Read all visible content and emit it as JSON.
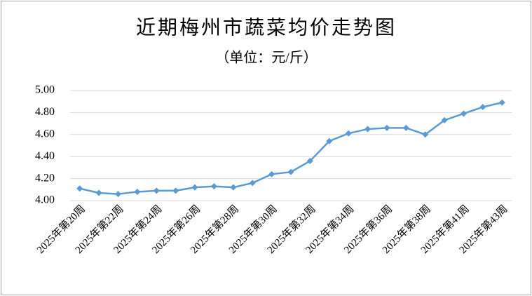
{
  "chart_data": {
    "type": "line",
    "title": "近期梅州市蔬菜均价走势图",
    "subtitle": "（单位：元/斤）",
    "categories": [
      "2025年第20周",
      null,
      "2025年第22周",
      null,
      "2025年第24周",
      null,
      "2025年第26周",
      null,
      "2025年第28周",
      null,
      "2025年第30周",
      null,
      "2025年第32周",
      null,
      "2025年第34周",
      null,
      "2025年第36周",
      null,
      "2025年第38周",
      null,
      "2025年第41周",
      null,
      "2025年第43周"
    ],
    "series": [
      {
        "name": "蔬菜均价",
        "color": "#5b9bd5",
        "values": [
          4.11,
          4.07,
          4.06,
          4.08,
          4.09,
          4.09,
          4.12,
          4.13,
          4.12,
          4.16,
          4.24,
          4.26,
          4.36,
          4.54,
          4.61,
          4.65,
          4.66,
          4.66,
          4.6,
          4.73,
          4.79,
          4.85,
          4.89
        ]
      }
    ],
    "ylim": [
      4.0,
      5.0
    ],
    "yticks": [
      {
        "value": 4.0,
        "label": "4.00"
      },
      {
        "value": 4.2,
        "label": "4.20"
      },
      {
        "value": 4.4,
        "label": "4.40"
      },
      {
        "value": 4.6,
        "label": "4.60"
      },
      {
        "value": 4.8,
        "label": "4.80"
      },
      {
        "value": 5.0,
        "label": "5.00"
      }
    ],
    "grid": true
  }
}
